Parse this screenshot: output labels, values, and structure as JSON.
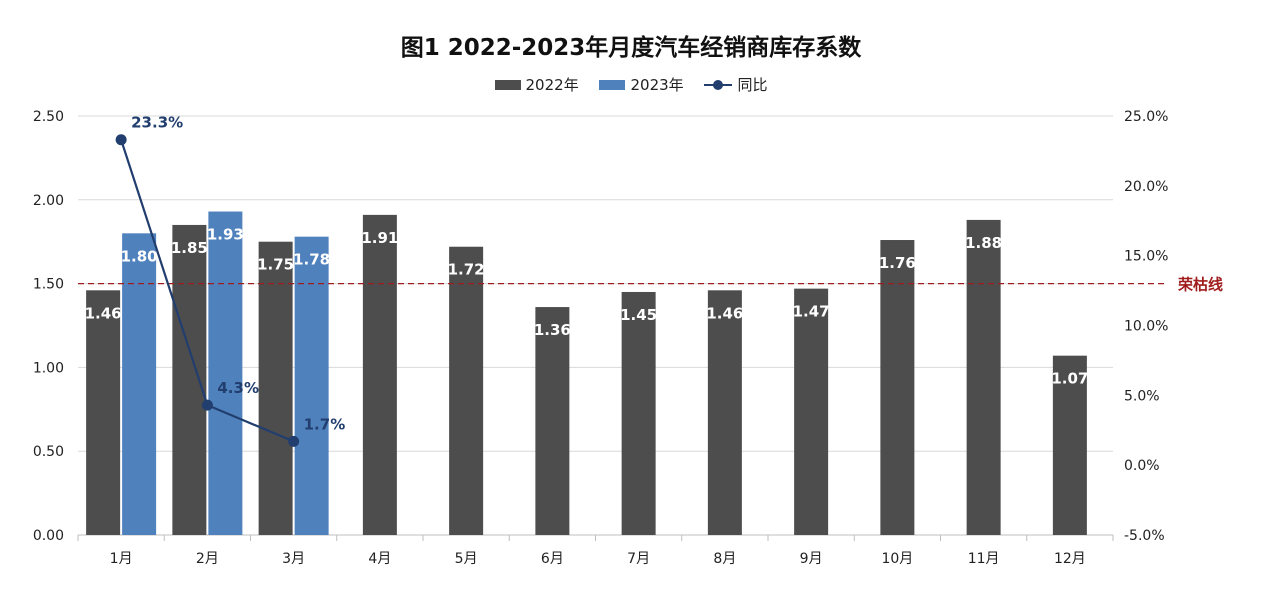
{
  "chart_data": {
    "type": "bar",
    "title": "图1  2022-2023年月度汽车经销商库存系数",
    "categories": [
      "1月",
      "2月",
      "3月",
      "4月",
      "5月",
      "6月",
      "7月",
      "8月",
      "9月",
      "10月",
      "11月",
      "12月"
    ],
    "series": [
      {
        "name": "2022年",
        "type": "bar",
        "axis": "left",
        "color": "#4D4D4D",
        "values": [
          1.46,
          1.85,
          1.75,
          1.91,
          1.72,
          1.36,
          1.45,
          1.46,
          1.47,
          1.76,
          1.88,
          1.07
        ],
        "labels": [
          "1.46",
          "1.85",
          "1.75",
          "1.91",
          "1.72",
          "1.36",
          "1.45",
          "1.46",
          "1.47",
          "1.76",
          "1.88",
          "1.07"
        ]
      },
      {
        "name": "2023年",
        "type": "bar",
        "axis": "left",
        "color": "#4F81BD",
        "values": [
          1.8,
          1.93,
          1.78,
          null,
          null,
          null,
          null,
          null,
          null,
          null,
          null,
          null
        ],
        "labels": [
          "1.80",
          "1.93",
          "1.78"
        ]
      },
      {
        "name": "同比",
        "type": "line",
        "axis": "right",
        "color": "#213E6E",
        "values": [
          23.3,
          4.3,
          1.7,
          null,
          null,
          null,
          null,
          null,
          null,
          null,
          null,
          null
        ],
        "labels": [
          "23.3%",
          "4.3%",
          "1.7%"
        ]
      }
    ],
    "y_left": {
      "min": 0,
      "max": 2.5,
      "ticks": [
        "0.00",
        "0.50",
        "1.00",
        "1.50",
        "2.00",
        "2.50"
      ]
    },
    "y_right": {
      "min": -5,
      "max": 25,
      "ticks": [
        "-5.0%",
        "0.0%",
        "5.0%",
        "10.0%",
        "15.0%",
        "20.0%",
        "25.0%"
      ]
    },
    "reference_line": {
      "label": "荣枯线",
      "value": 1.5,
      "axis": "left",
      "color": "#A01C1C",
      "style": "dashed"
    },
    "grid": true,
    "legend_position": "top"
  }
}
